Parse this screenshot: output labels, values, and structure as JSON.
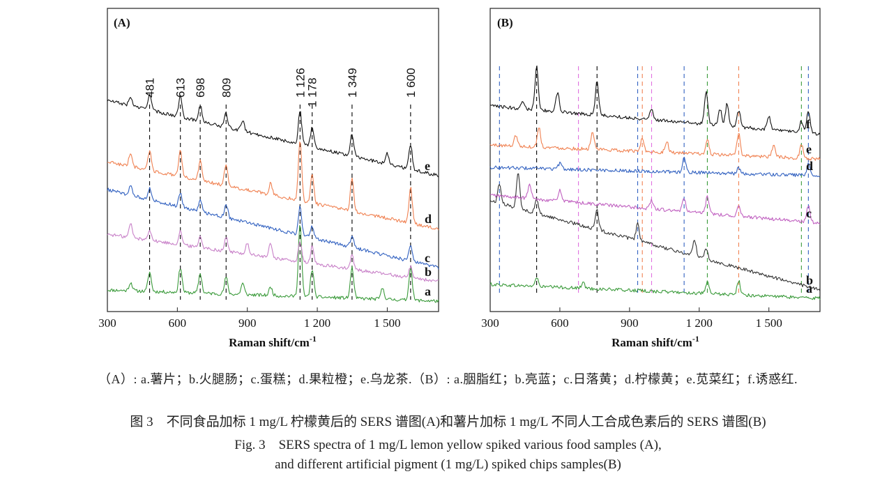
{
  "chart_data": [
    {
      "type": "line",
      "panel_label": "(A)",
      "xlabel": "Raman shift/cm",
      "xlabel_sup": "-1",
      "xlim": [
        300,
        1720
      ],
      "xticks": [
        300,
        600,
        900,
        1200,
        1500
      ],
      "xtick_labels": [
        "300",
        "600",
        "900",
        "1 200",
        "1 500"
      ],
      "peak_labels": [
        {
          "x": 481,
          "text": "481"
        },
        {
          "x": 613,
          "text": "613"
        },
        {
          "x": 698,
          "text": "698"
        },
        {
          "x": 809,
          "text": "809"
        },
        {
          "x": 1126,
          "text": "1 126"
        },
        {
          "x": 1178,
          "text": "1 178"
        },
        {
          "x": 1349,
          "text": "1 349"
        },
        {
          "x": 1600,
          "text": "1 600"
        }
      ],
      "reference_lines": [
        {
          "x": 481,
          "color": "#000000"
        },
        {
          "x": 613,
          "color": "#000000"
        },
        {
          "x": 698,
          "color": "#000000"
        },
        {
          "x": 809,
          "color": "#000000"
        },
        {
          "x": 1126,
          "color": "#000000"
        },
        {
          "x": 1178,
          "color": "#000000"
        },
        {
          "x": 1349,
          "color": "#000000"
        },
        {
          "x": 1600,
          "color": "#000000"
        }
      ],
      "series": [
        {
          "name": "a",
          "color": "#3a9a3a",
          "baseline": [
            [
              300,
              0.06
            ],
            [
              1720,
              0.02
            ]
          ],
          "peaks": [
            [
              400,
              0.03
            ],
            [
              481,
              0.07
            ],
            [
              613,
              0.09
            ],
            [
              698,
              0.07
            ],
            [
              809,
              0.06
            ],
            [
              880,
              0.04
            ],
            [
              1000,
              0.03
            ],
            [
              1126,
              0.26
            ],
            [
              1178,
              0.1
            ],
            [
              1349,
              0.11
            ],
            [
              1480,
              0.04
            ],
            [
              1600,
              0.12
            ]
          ]
        },
        {
          "name": "b",
          "color": "#c880c8",
          "baseline": [
            [
              300,
              0.26
            ],
            [
              1720,
              0.09
            ]
          ],
          "peaks": [
            [
              400,
              0.05
            ],
            [
              481,
              0.04
            ],
            [
              613,
              0.05
            ],
            [
              698,
              0.04
            ],
            [
              809,
              0.05
            ],
            [
              900,
              0.04
            ],
            [
              1000,
              0.05
            ],
            [
              1126,
              0.07
            ],
            [
              1178,
              0.06
            ],
            [
              1349,
              0.05
            ],
            [
              1600,
              0.04
            ]
          ]
        },
        {
          "name": "c",
          "color": "#3060c0",
          "baseline": [
            [
              300,
              0.42
            ],
            [
              1720,
              0.14
            ]
          ],
          "peaks": [
            [
              400,
              0.03
            ],
            [
              481,
              0.04
            ],
            [
              613,
              0.05
            ],
            [
              698,
              0.04
            ],
            [
              809,
              0.05
            ],
            [
              1126,
              0.1
            ],
            [
              1178,
              0.04
            ],
            [
              1349,
              0.04
            ],
            [
              1600,
              0.06
            ]
          ]
        },
        {
          "name": "d",
          "color": "#f08050",
          "baseline": [
            [
              300,
              0.52
            ],
            [
              1720,
              0.28
            ]
          ],
          "peaks": [
            [
              400,
              0.05
            ],
            [
              481,
              0.07
            ],
            [
              613,
              0.09
            ],
            [
              698,
              0.07
            ],
            [
              809,
              0.08
            ],
            [
              1000,
              0.04
            ],
            [
              1126,
              0.22
            ],
            [
              1178,
              0.1
            ],
            [
              1349,
              0.12
            ],
            [
              1600,
              0.13
            ]
          ]
        },
        {
          "name": "e",
          "color": "#111111",
          "baseline": [
            [
              300,
              0.74
            ],
            [
              1720,
              0.47
            ]
          ],
          "peaks": [
            [
              400,
              0.03
            ],
            [
              481,
              0.06
            ],
            [
              613,
              0.08
            ],
            [
              698,
              0.06
            ],
            [
              809,
              0.05
            ],
            [
              880,
              0.04
            ],
            [
              1126,
              0.12
            ],
            [
              1178,
              0.07
            ],
            [
              1349,
              0.08
            ],
            [
              1500,
              0.04
            ],
            [
              1600,
              0.09
            ]
          ]
        }
      ]
    },
    {
      "type": "line",
      "panel_label": "(B)",
      "xlabel": "Raman shift/cm",
      "xlabel_sup": "-1",
      "xlim": [
        300,
        1720
      ],
      "xticks": [
        300,
        600,
        900,
        1200,
        1500
      ],
      "xtick_labels": [
        "300",
        "600",
        "900",
        "1 200",
        "1 500"
      ],
      "reference_lines": [
        {
          "x": 340,
          "color": "#3060c0"
        },
        {
          "x": 500,
          "color": "#000000"
        },
        {
          "x": 680,
          "color": "#e070e0"
        },
        {
          "x": 760,
          "color": "#000000"
        },
        {
          "x": 935,
          "color": "#3060c0"
        },
        {
          "x": 955,
          "color": "#f08050"
        },
        {
          "x": 995,
          "color": "#e070e0"
        },
        {
          "x": 1135,
          "color": "#3060c0"
        },
        {
          "x": 1235,
          "color": "#3a9a3a"
        },
        {
          "x": 1370,
          "color": "#f08050"
        },
        {
          "x": 1640,
          "color": "#3a9a3a"
        },
        {
          "x": 1670,
          "color": "#3060c0"
        }
      ],
      "series": [
        {
          "name": "a",
          "color": "#3a9a3a",
          "baseline": [
            [
              300,
              0.08
            ],
            [
              1720,
              0.03
            ]
          ],
          "peaks": [
            [
              500,
              0.03
            ],
            [
              700,
              0.02
            ],
            [
              1235,
              0.04
            ],
            [
              1370,
              0.05
            ]
          ]
        },
        {
          "name": "b",
          "color": "#333333",
          "baseline": [
            [
              300,
              0.38
            ],
            [
              1720,
              0.06
            ]
          ],
          "peaks": [
            [
              340,
              0.07
            ],
            [
              420,
              0.13
            ],
            [
              500,
              0.05
            ],
            [
              760,
              0.07
            ],
            [
              935,
              0.06
            ],
            [
              1180,
              0.06
            ],
            [
              1230,
              0.04
            ]
          ]
        },
        {
          "name": "c",
          "color": "#c060c0",
          "baseline": [
            [
              300,
              0.4
            ],
            [
              1720,
              0.3
            ]
          ],
          "peaks": [
            [
              470,
              0.05
            ],
            [
              600,
              0.04
            ],
            [
              995,
              0.03
            ],
            [
              1135,
              0.05
            ],
            [
              1235,
              0.06
            ],
            [
              1370,
              0.04
            ],
            [
              1670,
              0.06
            ]
          ]
        },
        {
          "name": "d",
          "color": "#3060c0",
          "baseline": [
            [
              300,
              0.5
            ],
            [
              1720,
              0.47
            ]
          ],
          "peaks": [
            [
              600,
              0.02
            ],
            [
              1135,
              0.05
            ],
            [
              1370,
              0.02
            ],
            [
              1670,
              0.04
            ]
          ]
        },
        {
          "name": "e",
          "color": "#f08050",
          "baseline": [
            [
              300,
              0.58
            ],
            [
              1720,
              0.53
            ]
          ],
          "peaks": [
            [
              410,
              0.04
            ],
            [
              510,
              0.07
            ],
            [
              740,
              0.06
            ],
            [
              955,
              0.05
            ],
            [
              1060,
              0.04
            ],
            [
              1235,
              0.05
            ],
            [
              1370,
              0.08
            ],
            [
              1520,
              0.04
            ],
            [
              1640,
              0.05
            ]
          ]
        },
        {
          "name": "f",
          "color": "#111111",
          "baseline": [
            [
              300,
              0.72
            ],
            [
              1720,
              0.62
            ]
          ],
          "peaks": [
            [
              440,
              0.03
            ],
            [
              500,
              0.16
            ],
            [
              590,
              0.07
            ],
            [
              760,
              0.12
            ],
            [
              995,
              0.04
            ],
            [
              1230,
              0.12
            ],
            [
              1290,
              0.06
            ],
            [
              1320,
              0.08
            ],
            [
              1370,
              0.06
            ],
            [
              1500,
              0.05
            ],
            [
              1640,
              0.04
            ],
            [
              1670,
              0.08
            ]
          ]
        }
      ]
    }
  ],
  "legend_text": "（A）: a.薯片；b.火腿肠；c.蛋糕；d.果粒橙；e.乌龙茶.（B）: a.胭脂红；b.亮蓝；c.日落黄；d.柠檬黄；e.苋菜红；f.诱惑红.",
  "caption_zh": "图 3　不同食品加标 1 mg/L 柠檬黄后的 SERS 谱图(A)和薯片加标 1 mg/L 不同人工合成色素后的 SERS 谱图(B)",
  "caption_en_1": "Fig. 3　SERS spectra of 1 mg/L lemon yellow spiked various food samples (A),",
  "caption_en_2": "and different artificial pigment (1 mg/L) spiked chips samples(B)"
}
